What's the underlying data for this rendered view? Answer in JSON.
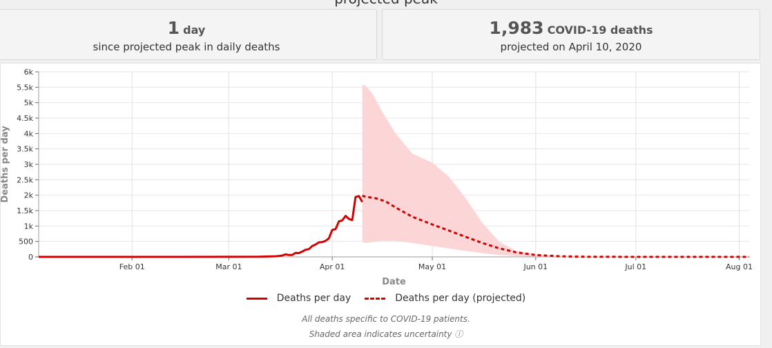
{
  "header_fragment": "projected peak",
  "cards": {
    "peak": {
      "big": "1",
      "unit": "day",
      "sub": "since projected peak in daily deaths"
    },
    "deaths": {
      "big": "1,983",
      "unit": "COVID-19 deaths",
      "sub": "projected on April 10, 2020"
    }
  },
  "chart_data": {
    "type": "line",
    "xlabel": "Date",
    "ylabel": "Deaths per day",
    "x_range": [
      "2020-01-04",
      "2020-08-04"
    ],
    "ylim": [
      0,
      6000
    ],
    "y_ticks": [
      0,
      500,
      1000,
      1500,
      2000,
      2500,
      3000,
      3500,
      4000,
      4500,
      5000,
      5500,
      6000
    ],
    "y_tick_labels": [
      "0",
      "500",
      "1k",
      "1.5k",
      "2k",
      "2.5k",
      "3k",
      "3.5k",
      "4k",
      "4.5k",
      "5k",
      "5.5k",
      "6k"
    ],
    "x_ticks": [
      "2020-02-01",
      "2020-03-01",
      "2020-04-01",
      "2020-05-01",
      "2020-06-01",
      "2020-07-01",
      "2020-08-01"
    ],
    "x_tick_labels": [
      "Feb 01",
      "Mar 01",
      "Apr 01",
      "May 01",
      "Jun 01",
      "Jul 01",
      "Aug 01"
    ],
    "grid": true,
    "legend_position": "bottom",
    "series": [
      {
        "name": "Deaths per day",
        "style": "solid",
        "color": "#d40000",
        "x": [
          "2020-01-04",
          "2020-02-15",
          "2020-03-01",
          "2020-03-10",
          "2020-03-15",
          "2020-03-16",
          "2020-03-17",
          "2020-03-18",
          "2020-03-19",
          "2020-03-20",
          "2020-03-21",
          "2020-03-22",
          "2020-03-23",
          "2020-03-24",
          "2020-03-25",
          "2020-03-26",
          "2020-03-27",
          "2020-03-28",
          "2020-03-29",
          "2020-03-30",
          "2020-03-31",
          "2020-04-01",
          "2020-04-02",
          "2020-04-03",
          "2020-04-04",
          "2020-04-05",
          "2020-04-06",
          "2020-04-07",
          "2020-04-08",
          "2020-04-09",
          "2020-04-10"
        ],
        "y": [
          0,
          0,
          2,
          5,
          20,
          30,
          45,
          80,
          60,
          60,
          130,
          120,
          170,
          230,
          250,
          350,
          400,
          470,
          480,
          520,
          600,
          870,
          900,
          1150,
          1180,
          1330,
          1230,
          1190,
          1940,
          1970,
          1780
        ]
      },
      {
        "name": "Deaths per day (projected)",
        "style": "dashed",
        "color": "#d40000",
        "x": [
          "2020-04-10",
          "2020-04-11",
          "2020-04-14",
          "2020-04-17",
          "2020-04-20",
          "2020-04-25",
          "2020-05-01",
          "2020-05-06",
          "2020-05-11",
          "2020-05-16",
          "2020-05-21",
          "2020-05-26",
          "2020-06-01",
          "2020-06-08",
          "2020-06-15",
          "2020-07-01",
          "2020-08-04"
        ],
        "y": [
          1983,
          1950,
          1900,
          1800,
          1600,
          1300,
          1050,
          850,
          650,
          450,
          280,
          150,
          60,
          20,
          5,
          0,
          0
        ]
      }
    ],
    "uncertainty": {
      "x": [
        "2020-04-10",
        "2020-04-11",
        "2020-04-13",
        "2020-04-16",
        "2020-04-20",
        "2020-04-25",
        "2020-05-01",
        "2020-05-06",
        "2020-05-11",
        "2020-05-16",
        "2020-05-21",
        "2020-05-26",
        "2020-06-01",
        "2020-06-08",
        "2020-06-15",
        "2020-06-25",
        "2020-07-01"
      ],
      "lower": [
        500,
        450,
        480,
        520,
        520,
        450,
        350,
        270,
        190,
        120,
        60,
        25,
        10,
        3,
        0,
        0,
        0
      ],
      "upper": [
        5580,
        5550,
        5300,
        4700,
        4000,
        3350,
        3050,
        2600,
        1900,
        1100,
        500,
        200,
        80,
        30,
        10,
        0,
        0
      ]
    },
    "footnotes": [
      "All deaths specific to COVID-19 patients.",
      "Shaded area indicates uncertainty ⓘ"
    ]
  }
}
